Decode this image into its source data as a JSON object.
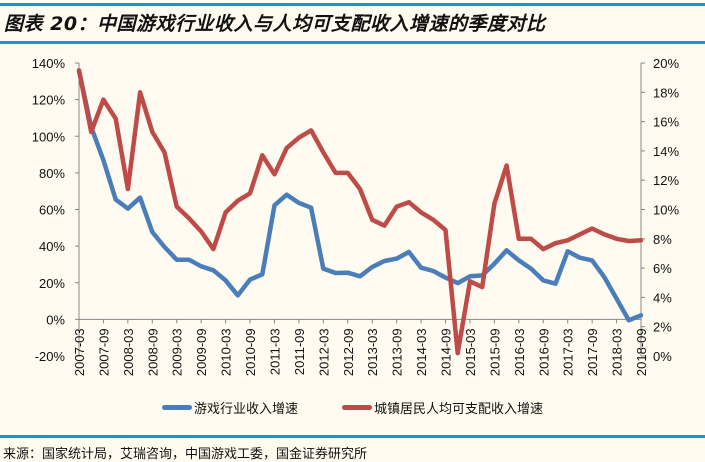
{
  "title": "图表 20：中国游戏行业收入与人均可支配收入增速的季度对比",
  "source": "来源：国家统计局，艾瑞咨询，中国游戏工委，国金证券研究所",
  "chart_data": {
    "type": "line",
    "title": "图表 20：中国游戏行业收入与人均可支配收入增速的季度对比",
    "x_tick_labels": [
      "2007-03",
      "2007-09",
      "2008-03",
      "2008-09",
      "2009-03",
      "2009-09",
      "2010-03",
      "2010-09",
      "2011-03",
      "2011-09",
      "2012-03",
      "2012-09",
      "2013-03",
      "2013-09",
      "2014-03",
      "2014-09",
      "2015-03",
      "2015-09",
      "2016-03",
      "2016-09",
      "2017-03",
      "2017-09",
      "2018-03",
      "2018-09"
    ],
    "x": [
      "2007-03",
      "2007-06",
      "2007-09",
      "2007-12",
      "2008-03",
      "2008-06",
      "2008-09",
      "2008-12",
      "2009-03",
      "2009-06",
      "2009-09",
      "2009-12",
      "2010-03",
      "2010-06",
      "2010-09",
      "2010-12",
      "2011-03",
      "2011-06",
      "2011-09",
      "2011-12",
      "2012-03",
      "2012-06",
      "2012-09",
      "2012-12",
      "2013-03",
      "2013-06",
      "2013-09",
      "2013-12",
      "2014-03",
      "2014-06",
      "2014-09",
      "2014-12",
      "2015-03",
      "2015-06",
      "2015-09",
      "2015-12",
      "2016-03",
      "2016-06",
      "2016-09",
      "2016-12",
      "2017-03",
      "2017-06",
      "2017-09",
      "2017-12",
      "2018-03",
      "2018-06",
      "2018-09"
    ],
    "left_axis": {
      "range": [
        -20,
        140
      ],
      "ticks": [
        "140%",
        "120%",
        "100%",
        "80%",
        "60%",
        "40%",
        "20%",
        "0%",
        "-20%"
      ],
      "unit": "%"
    },
    "right_axis": {
      "range": [
        0,
        20
      ],
      "ticks": [
        "20%",
        "18%",
        "16%",
        "14%",
        "12%",
        "10%",
        "8%",
        "6%",
        "4%",
        "2%",
        "0%"
      ],
      "unit": "%"
    },
    "grid": false,
    "legend_placement": "bottom",
    "series": [
      {
        "name": "游戏行业收入增速",
        "axis": "left",
        "color": "#4a7ebb",
        "values": [
          135.7,
          105,
          87,
          65.4,
          60.5,
          66.5,
          47.7,
          39.5,
          32.6,
          32.6,
          29,
          26.8,
          21.3,
          13.1,
          21.7,
          24.6,
          62.3,
          68.1,
          63.6,
          61,
          27.7,
          25.3,
          25.5,
          23.5,
          28.6,
          31.9,
          33.2,
          36.8,
          28.2,
          26.4,
          22.8,
          19.8,
          23.5,
          24,
          30.4,
          37.7,
          32.2,
          27.7,
          21.3,
          19.5,
          37.2,
          33.7,
          32.2,
          23.1,
          11.3,
          -0.5,
          2.2
        ]
      },
      {
        "name": "城镇居民人均可支配收入增速",
        "axis": "right",
        "color": "#be4b48",
        "values": [
          19.5,
          15.3,
          17.5,
          16.2,
          11.4,
          18.0,
          15.3,
          13.9,
          10.2,
          9.4,
          8.5,
          7.3,
          9.8,
          10.6,
          11.1,
          13.7,
          12.4,
          14.2,
          14.9,
          15.4,
          13.9,
          12.5,
          12.5,
          11.4,
          9.3,
          8.9,
          10.2,
          10.5,
          9.8,
          9.3,
          8.6,
          0.2,
          5.1,
          4.7,
          10.4,
          13.0,
          8.0,
          8.0,
          7.3,
          7.7,
          7.9,
          8.3,
          8.7,
          8.3,
          8.0,
          7.85,
          7.9
        ]
      }
    ]
  }
}
